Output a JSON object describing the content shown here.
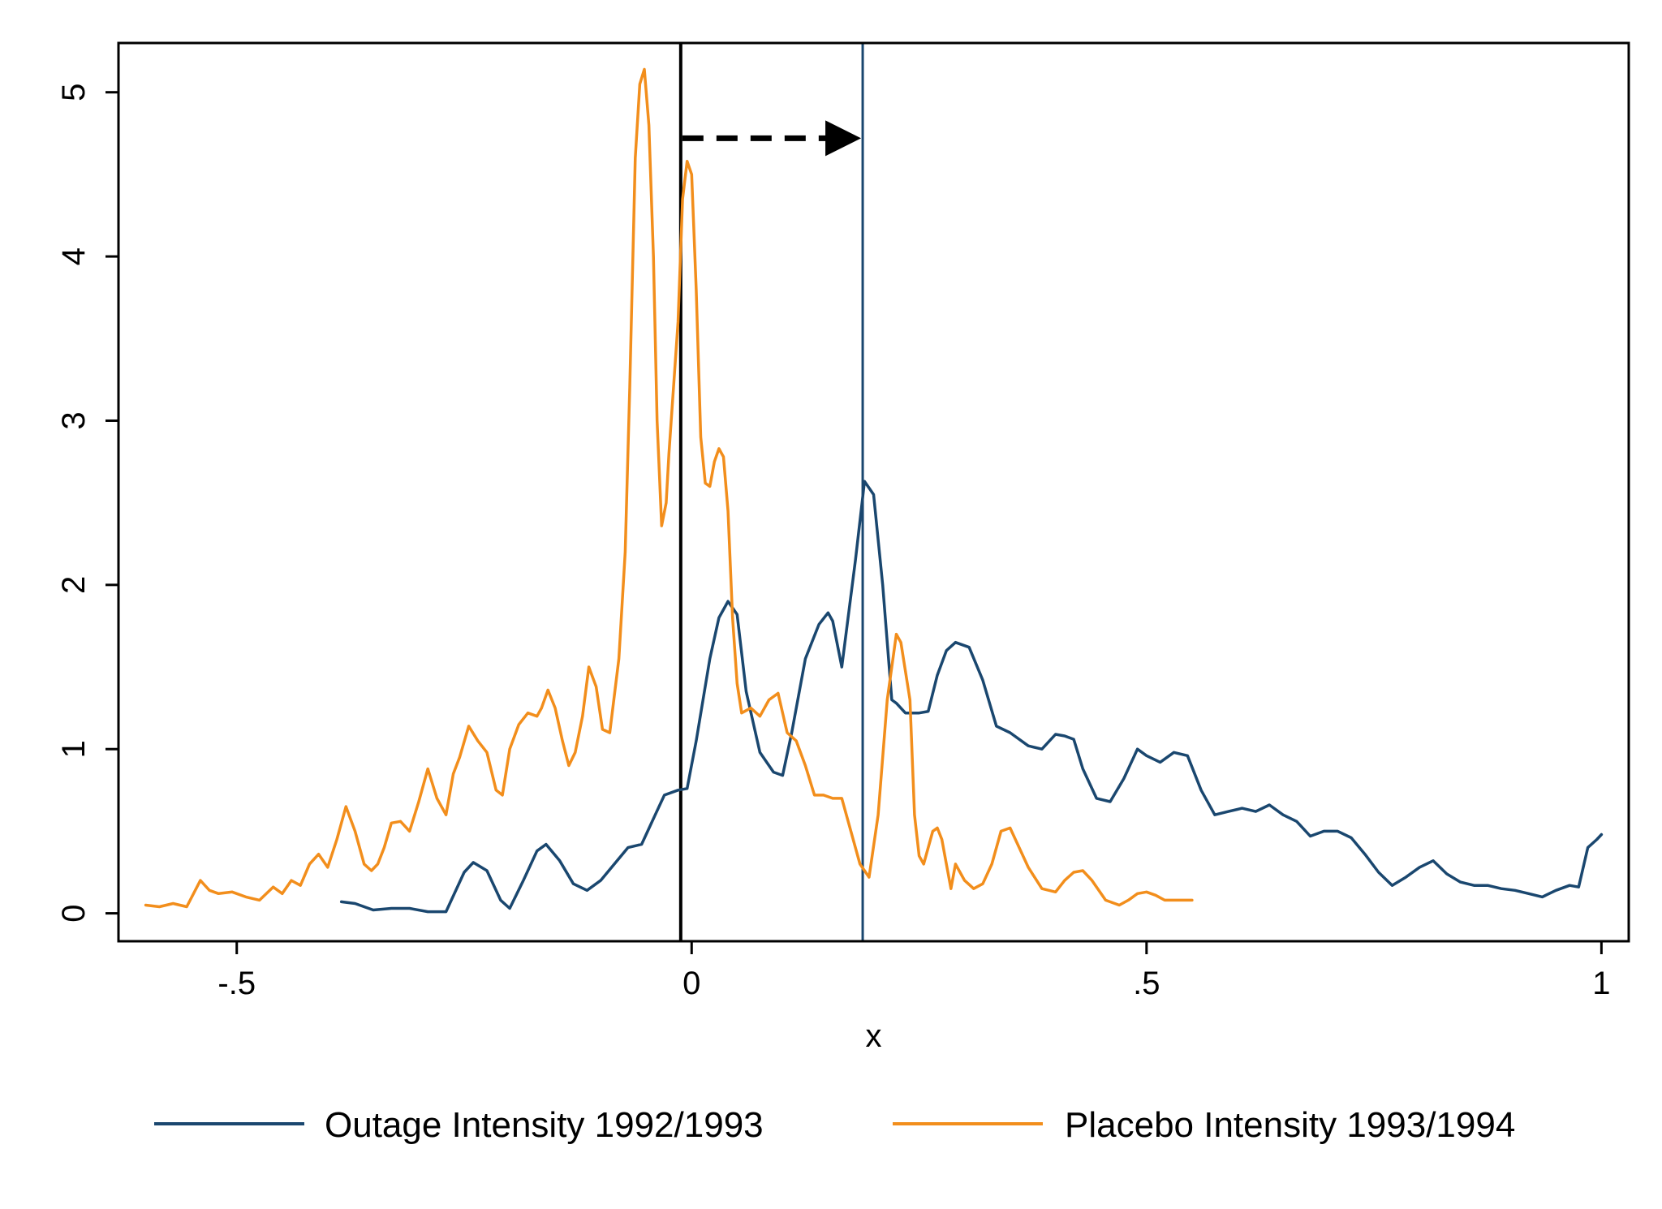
{
  "chart_data": {
    "type": "line",
    "xlabel": "x",
    "ylabel": "",
    "xlim": [
      -0.63,
      1.03
    ],
    "ylim": [
      -0.17,
      5.3
    ],
    "x_ticks": [
      {
        "value": -0.5,
        "label": "-.5"
      },
      {
        "value": 0,
        "label": "0"
      },
      {
        "value": 0.5,
        "label": ".5"
      },
      {
        "value": 1,
        "label": "1"
      }
    ],
    "y_ticks": [
      {
        "value": 0,
        "label": "0"
      },
      {
        "value": 1,
        "label": "1"
      },
      {
        "value": 2,
        "label": "2"
      },
      {
        "value": 3,
        "label": "3"
      },
      {
        "value": 4,
        "label": "4"
      },
      {
        "value": 5,
        "label": "5"
      }
    ],
    "grid": false,
    "legend_position": "bottom",
    "reference_lines": [
      {
        "x": -0.012,
        "color": "#000000"
      },
      {
        "x": 0.188,
        "color": "#1a476f"
      }
    ],
    "arrow": {
      "x_start": -0.012,
      "x_end": 0.188,
      "y": 4.72,
      "style": "dashed"
    },
    "series": [
      {
        "name": "Outage Intensity 1992/1993",
        "color": "#1a476f",
        "x": [
          -0.385,
          -0.37,
          -0.35,
          -0.33,
          -0.31,
          -0.29,
          -0.27,
          -0.25,
          -0.24,
          -0.225,
          -0.21,
          -0.2,
          -0.185,
          -0.17,
          -0.16,
          -0.145,
          -0.13,
          -0.115,
          -0.1,
          -0.085,
          -0.07,
          -0.055,
          -0.04,
          -0.03,
          -0.015,
          -0.005,
          0.005,
          0.02,
          0.03,
          0.04,
          0.05,
          0.06,
          0.075,
          0.09,
          0.1,
          0.11,
          0.125,
          0.14,
          0.15,
          0.155,
          0.165,
          0.18,
          0.19,
          0.2,
          0.21,
          0.22,
          0.225,
          0.235,
          0.25,
          0.26,
          0.27,
          0.28,
          0.29,
          0.305,
          0.32,
          0.335,
          0.35,
          0.37,
          0.385,
          0.4,
          0.41,
          0.42,
          0.43,
          0.445,
          0.46,
          0.475,
          0.49,
          0.5,
          0.515,
          0.53,
          0.545,
          0.56,
          0.575,
          0.59,
          0.605,
          0.62,
          0.635,
          0.65,
          0.665,
          0.68,
          0.695,
          0.71,
          0.725,
          0.74,
          0.755,
          0.77,
          0.785,
          0.8,
          0.815,
          0.83,
          0.845,
          0.86,
          0.875,
          0.89,
          0.905,
          0.92,
          0.935,
          0.95,
          0.965,
          0.975,
          0.985,
          0.995,
          1.0
        ],
        "values": [
          0.07,
          0.06,
          0.02,
          0.03,
          0.03,
          0.01,
          0.01,
          0.25,
          0.31,
          0.26,
          0.08,
          0.03,
          0.2,
          0.38,
          0.42,
          0.32,
          0.18,
          0.14,
          0.2,
          0.3,
          0.4,
          0.42,
          0.6,
          0.72,
          0.75,
          0.76,
          1.05,
          1.55,
          1.8,
          1.9,
          1.82,
          1.35,
          0.98,
          0.86,
          0.84,
          1.1,
          1.55,
          1.76,
          1.83,
          1.78,
          1.5,
          2.15,
          2.63,
          2.55,
          2.0,
          1.3,
          1.28,
          1.22,
          1.22,
          1.23,
          1.45,
          1.6,
          1.65,
          1.62,
          1.42,
          1.14,
          1.1,
          1.02,
          1.0,
          1.09,
          1.08,
          1.06,
          0.88,
          0.7,
          0.68,
          0.82,
          1.0,
          0.96,
          0.92,
          0.98,
          0.96,
          0.75,
          0.6,
          0.62,
          0.64,
          0.62,
          0.66,
          0.6,
          0.56,
          0.47,
          0.5,
          0.5,
          0.46,
          0.36,
          0.25,
          0.17,
          0.22,
          0.28,
          0.32,
          0.24,
          0.19,
          0.17,
          0.17,
          0.15,
          0.14,
          0.12,
          0.1,
          0.14,
          0.17,
          0.16,
          0.4,
          0.45,
          0.48
        ]
      },
      {
        "name": "Placebo Intensity 1993/1994",
        "color": "#f28e1c",
        "x": [
          -0.6,
          -0.585,
          -0.57,
          -0.555,
          -0.54,
          -0.53,
          -0.52,
          -0.505,
          -0.49,
          -0.475,
          -0.46,
          -0.45,
          -0.44,
          -0.43,
          -0.42,
          -0.41,
          -0.4,
          -0.39,
          -0.38,
          -0.37,
          -0.36,
          -0.352,
          -0.345,
          -0.338,
          -0.33,
          -0.32,
          -0.31,
          -0.3,
          -0.29,
          -0.28,
          -0.27,
          -0.262,
          -0.255,
          -0.245,
          -0.235,
          -0.225,
          -0.215,
          -0.208,
          -0.2,
          -0.19,
          -0.18,
          -0.17,
          -0.165,
          -0.158,
          -0.15,
          -0.142,
          -0.135,
          -0.128,
          -0.12,
          -0.113,
          -0.105,
          -0.098,
          -0.09,
          -0.08,
          -0.073,
          -0.068,
          -0.062,
          -0.057,
          -0.052,
          -0.047,
          -0.042,
          -0.038,
          -0.033,
          -0.028,
          -0.025,
          -0.02,
          -0.015,
          -0.01,
          -0.005,
          0.0,
          0.005,
          0.01,
          0.015,
          0.02,
          0.025,
          0.03,
          0.035,
          0.04,
          0.045,
          0.05,
          0.055,
          0.065,
          0.075,
          0.085,
          0.095,
          0.105,
          0.115,
          0.125,
          0.135,
          0.145,
          0.155,
          0.165,
          0.175,
          0.185,
          0.195,
          0.205,
          0.215,
          0.225,
          0.23,
          0.24,
          0.245,
          0.25,
          0.255,
          0.26,
          0.265,
          0.27,
          0.275,
          0.28,
          0.285,
          0.29,
          0.3,
          0.31,
          0.32,
          0.33,
          0.34,
          0.35,
          0.36,
          0.37,
          0.385,
          0.4,
          0.41,
          0.42,
          0.43,
          0.44,
          0.455,
          0.47,
          0.48,
          0.49,
          0.5,
          0.51,
          0.52,
          0.535,
          0.55
        ],
        "values": [
          0.05,
          0.04,
          0.06,
          0.04,
          0.2,
          0.14,
          0.12,
          0.13,
          0.1,
          0.08,
          0.16,
          0.12,
          0.2,
          0.17,
          0.3,
          0.36,
          0.28,
          0.45,
          0.65,
          0.5,
          0.3,
          0.26,
          0.3,
          0.4,
          0.55,
          0.56,
          0.5,
          0.68,
          0.88,
          0.7,
          0.6,
          0.85,
          0.95,
          1.14,
          1.05,
          0.98,
          0.75,
          0.72,
          1.0,
          1.15,
          1.22,
          1.2,
          1.25,
          1.36,
          1.25,
          1.05,
          0.9,
          0.98,
          1.2,
          1.5,
          1.38,
          1.12,
          1.1,
          1.55,
          2.2,
          3.2,
          4.6,
          5.05,
          5.14,
          4.8,
          4.0,
          3.0,
          2.36,
          2.5,
          2.8,
          3.2,
          3.6,
          4.35,
          4.58,
          4.5,
          3.8,
          2.9,
          2.62,
          2.6,
          2.75,
          2.83,
          2.78,
          2.45,
          1.8,
          1.4,
          1.22,
          1.25,
          1.2,
          1.3,
          1.34,
          1.1,
          1.05,
          0.9,
          0.72,
          0.72,
          0.7,
          0.7,
          0.5,
          0.3,
          0.22,
          0.6,
          1.3,
          1.7,
          1.65,
          1.3,
          0.6,
          0.35,
          0.3,
          0.4,
          0.5,
          0.52,
          0.45,
          0.3,
          0.15,
          0.3,
          0.2,
          0.15,
          0.18,
          0.3,
          0.5,
          0.52,
          0.4,
          0.28,
          0.15,
          0.13,
          0.2,
          0.25,
          0.26,
          0.2,
          0.08,
          0.05,
          0.08,
          0.12,
          0.13,
          0.11,
          0.08,
          0.08,
          0.08
        ]
      }
    ]
  }
}
